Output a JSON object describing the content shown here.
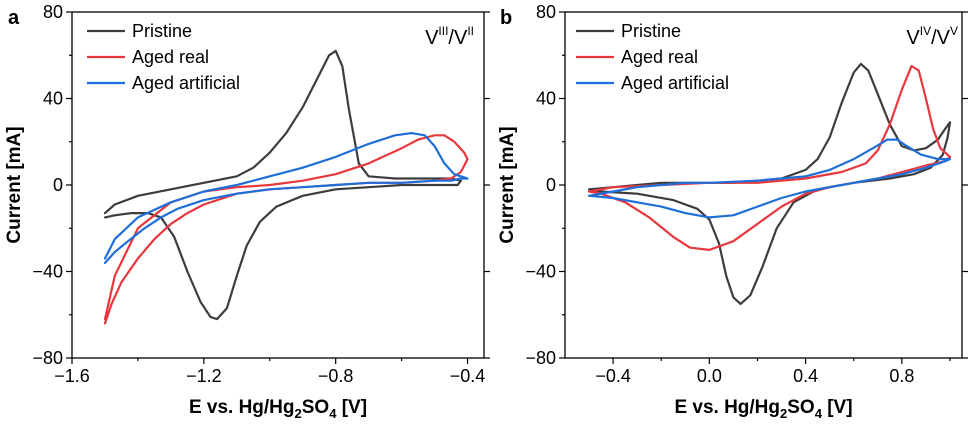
{
  "chart_data": [
    {
      "panel_label": "a",
      "type": "line",
      "xlabel_main": "E vs. Hg/Hg",
      "xlabel_sub1": "2",
      "xlabel_mid": "SO",
      "xlabel_sub2": "4",
      "xlabel_end": " [V]",
      "ylabel": "Current [mA]",
      "xlim": [
        -1.6,
        -0.35
      ],
      "ylim": [
        -80,
        80
      ],
      "xticks": [
        -1.6,
        -1.2,
        -0.8,
        -0.4
      ],
      "xtick_labels": [
        "−1.6",
        "−1.2",
        "−0.8",
        "−0.4"
      ],
      "yticks": [
        -80,
        -40,
        0,
        40,
        80
      ],
      "ytick_labels": [
        "−80",
        "−40",
        "0",
        "40",
        "80"
      ],
      "annotation": {
        "base1": "V",
        "sup1": "III",
        "mid": "/V",
        "sup2": "II"
      },
      "legend": {
        "position": "top-left",
        "entries": [
          "Pristine",
          "Aged real",
          "Aged artificial"
        ]
      },
      "series": [
        {
          "name": "Pristine",
          "color": "#3d3d3d",
          "points": [
            [
              -1.5,
              -15
            ],
            [
              -1.47,
              -14
            ],
            [
              -1.42,
              -13
            ],
            [
              -1.37,
              -13
            ],
            [
              -1.33,
              -15
            ],
            [
              -1.29,
              -24
            ],
            [
              -1.25,
              -40
            ],
            [
              -1.21,
              -54
            ],
            [
              -1.18,
              -61
            ],
            [
              -1.16,
              -62
            ],
            [
              -1.13,
              -57
            ],
            [
              -1.1,
              -42
            ],
            [
              -1.07,
              -28
            ],
            [
              -1.03,
              -17
            ],
            [
              -0.98,
              -10
            ],
            [
              -0.9,
              -5
            ],
            [
              -0.8,
              -2
            ],
            [
              -0.7,
              -1
            ],
            [
              -0.6,
              0
            ],
            [
              -0.5,
              0
            ],
            [
              -0.43,
              0
            ],
            [
              -0.42,
              2
            ],
            [
              -0.45,
              3
            ],
            [
              -0.55,
              3
            ],
            [
              -0.62,
              3
            ],
            [
              -0.7,
              4
            ],
            [
              -0.73,
              10
            ],
            [
              -0.76,
              35
            ],
            [
              -0.78,
              55
            ],
            [
              -0.8,
              62
            ],
            [
              -0.82,
              60
            ],
            [
              -0.86,
              48
            ],
            [
              -0.9,
              36
            ],
            [
              -0.95,
              24
            ],
            [
              -1.0,
              15
            ],
            [
              -1.05,
              8
            ],
            [
              -1.1,
              4
            ],
            [
              -1.2,
              1
            ],
            [
              -1.3,
              -2
            ],
            [
              -1.4,
              -5
            ],
            [
              -1.47,
              -9
            ],
            [
              -1.5,
              -13
            ]
          ]
        },
        {
          "name": "Aged real",
          "color": "#e8383d",
          "points": [
            [
              -1.5,
              -64
            ],
            [
              -1.48,
              -55
            ],
            [
              -1.45,
              -45
            ],
            [
              -1.4,
              -34
            ],
            [
              -1.35,
              -25
            ],
            [
              -1.3,
              -18
            ],
            [
              -1.25,
              -13
            ],
            [
              -1.2,
              -9
            ],
            [
              -1.1,
              -4
            ],
            [
              -1.0,
              -2
            ],
            [
              -0.9,
              -1
            ],
            [
              -0.8,
              0
            ],
            [
              -0.7,
              1
            ],
            [
              -0.6,
              1
            ],
            [
              -0.5,
              2
            ],
            [
              -0.45,
              3
            ],
            [
              -0.42,
              6
            ],
            [
              -0.4,
              12
            ],
            [
              -0.41,
              15
            ],
            [
              -0.44,
              20
            ],
            [
              -0.47,
              23
            ],
            [
              -0.5,
              23
            ],
            [
              -0.55,
              21
            ],
            [
              -0.6,
              17
            ],
            [
              -0.7,
              10
            ],
            [
              -0.8,
              5
            ],
            [
              -0.9,
              2
            ],
            [
              -1.0,
              0
            ],
            [
              -1.1,
              -1
            ],
            [
              -1.2,
              -3
            ],
            [
              -1.3,
              -8
            ],
            [
              -1.4,
              -20
            ],
            [
              -1.47,
              -42
            ],
            [
              -1.5,
              -62
            ]
          ]
        },
        {
          "name": "Aged artificial",
          "color": "#1e6fd9",
          "points": [
            [
              -1.5,
              -36
            ],
            [
              -1.47,
              -31
            ],
            [
              -1.43,
              -26
            ],
            [
              -1.38,
              -20
            ],
            [
              -1.33,
              -15
            ],
            [
              -1.28,
              -11
            ],
            [
              -1.2,
              -7
            ],
            [
              -1.1,
              -4
            ],
            [
              -1.0,
              -2
            ],
            [
              -0.9,
              -1
            ],
            [
              -0.8,
              0
            ],
            [
              -0.7,
              1
            ],
            [
              -0.6,
              1
            ],
            [
              -0.5,
              2
            ],
            [
              -0.45,
              2
            ],
            [
              -0.42,
              3
            ],
            [
              -0.4,
              3
            ],
            [
              -0.42,
              4
            ],
            [
              -0.44,
              5
            ],
            [
              -0.47,
              10
            ],
            [
              -0.5,
              18
            ],
            [
              -0.53,
              23
            ],
            [
              -0.57,
              24
            ],
            [
              -0.62,
              23
            ],
            [
              -0.7,
              19
            ],
            [
              -0.8,
              13
            ],
            [
              -0.9,
              8
            ],
            [
              -1.0,
              4
            ],
            [
              -1.1,
              0
            ],
            [
              -1.2,
              -3
            ],
            [
              -1.3,
              -8
            ],
            [
              -1.4,
              -15
            ],
            [
              -1.47,
              -25
            ],
            [
              -1.5,
              -34
            ]
          ]
        }
      ]
    },
    {
      "panel_label": "b",
      "type": "line",
      "xlabel_main": "E vs. Hg/Hg",
      "xlabel_sub1": "2",
      "xlabel_mid": "SO",
      "xlabel_sub2": "4",
      "xlabel_end": " [V]",
      "ylabel": "Current [mA]",
      "xlim": [
        -0.6,
        1.05
      ],
      "ylim": [
        -80,
        80
      ],
      "xticks": [
        -0.4,
        0.0,
        0.4,
        0.8
      ],
      "xtick_labels": [
        "−0.4",
        "0.0",
        "0.4",
        "0.8"
      ],
      "yticks": [
        -80,
        -40,
        0,
        40,
        80
      ],
      "ytick_labels": [
        "−80",
        "−40",
        "0",
        "40",
        "80"
      ],
      "annotation": {
        "base1": "V",
        "sup1": "IV",
        "mid": "/V",
        "sup2": "V"
      },
      "legend": {
        "position": "top-left",
        "entries": [
          "Pristine",
          "Aged real",
          "Aged artificial"
        ]
      },
      "series": [
        {
          "name": "Pristine",
          "color": "#3d3d3d",
          "points": [
            [
              -0.5,
              -2
            ],
            [
              -0.4,
              -1
            ],
            [
              -0.3,
              0
            ],
            [
              -0.2,
              1
            ],
            [
              -0.1,
              1
            ],
            [
              0.0,
              1
            ],
            [
              0.1,
              1
            ],
            [
              0.2,
              2
            ],
            [
              0.3,
              3
            ],
            [
              0.4,
              7
            ],
            [
              0.45,
              12
            ],
            [
              0.5,
              22
            ],
            [
              0.55,
              38
            ],
            [
              0.6,
              52
            ],
            [
              0.63,
              56
            ],
            [
              0.66,
              53
            ],
            [
              0.7,
              42
            ],
            [
              0.75,
              28
            ],
            [
              0.8,
              18
            ],
            [
              0.85,
              16
            ],
            [
              0.9,
              17
            ],
            [
              0.95,
              21
            ],
            [
              0.98,
              26
            ],
            [
              1.0,
              29
            ],
            [
              0.99,
              22
            ],
            [
              0.97,
              14
            ],
            [
              0.92,
              8
            ],
            [
              0.85,
              5
            ],
            [
              0.75,
              3
            ],
            [
              0.6,
              1
            ],
            [
              0.45,
              -2
            ],
            [
              0.35,
              -8
            ],
            [
              0.28,
              -20
            ],
            [
              0.22,
              -38
            ],
            [
              0.17,
              -51
            ],
            [
              0.13,
              -55
            ],
            [
              0.1,
              -52
            ],
            [
              0.07,
              -42
            ],
            [
              0.04,
              -27
            ],
            [
              0.0,
              -16
            ],
            [
              -0.05,
              -11
            ],
            [
              -0.15,
              -7
            ],
            [
              -0.3,
              -4
            ],
            [
              -0.45,
              -3
            ],
            [
              -0.5,
              -2
            ]
          ]
        },
        {
          "name": "Aged real",
          "color": "#e8383d",
          "points": [
            [
              -0.5,
              -3
            ],
            [
              -0.4,
              -1
            ],
            [
              -0.2,
              0
            ],
            [
              0.0,
              1
            ],
            [
              0.2,
              1
            ],
            [
              0.4,
              3
            ],
            [
              0.55,
              6
            ],
            [
              0.65,
              10
            ],
            [
              0.7,
              16
            ],
            [
              0.75,
              28
            ],
            [
              0.8,
              44
            ],
            [
              0.84,
              55
            ],
            [
              0.87,
              53
            ],
            [
              0.9,
              40
            ],
            [
              0.93,
              26
            ],
            [
              0.96,
              17
            ],
            [
              1.0,
              13
            ],
            [
              0.98,
              11
            ],
            [
              0.9,
              9
            ],
            [
              0.8,
              6
            ],
            [
              0.7,
              3
            ],
            [
              0.6,
              1
            ],
            [
              0.5,
              -1
            ],
            [
              0.4,
              -4
            ],
            [
              0.3,
              -10
            ],
            [
              0.2,
              -18
            ],
            [
              0.1,
              -26
            ],
            [
              0.0,
              -30
            ],
            [
              -0.08,
              -29
            ],
            [
              -0.15,
              -24
            ],
            [
              -0.25,
              -15
            ],
            [
              -0.35,
              -8
            ],
            [
              -0.45,
              -4
            ],
            [
              -0.5,
              -3
            ]
          ]
        },
        {
          "name": "Aged artificial",
          "color": "#1e6fd9",
          "points": [
            [
              -0.5,
              -5
            ],
            [
              -0.4,
              -3
            ],
            [
              -0.3,
              -1
            ],
            [
              -0.2,
              0
            ],
            [
              -0.1,
              1
            ],
            [
              0.0,
              1
            ],
            [
              0.2,
              2
            ],
            [
              0.4,
              4
            ],
            [
              0.5,
              7
            ],
            [
              0.6,
              12
            ],
            [
              0.68,
              17
            ],
            [
              0.74,
              21
            ],
            [
              0.78,
              21
            ],
            [
              0.82,
              18
            ],
            [
              0.88,
              14
            ],
            [
              0.95,
              12
            ],
            [
              1.0,
              12
            ],
            [
              0.98,
              11
            ],
            [
              0.9,
              8
            ],
            [
              0.8,
              5
            ],
            [
              0.7,
              3
            ],
            [
              0.6,
              1
            ],
            [
              0.5,
              -1
            ],
            [
              0.4,
              -3
            ],
            [
              0.3,
              -6
            ],
            [
              0.2,
              -10
            ],
            [
              0.1,
              -14
            ],
            [
              0.0,
              -15
            ],
            [
              -0.1,
              -13
            ],
            [
              -0.2,
              -10
            ],
            [
              -0.3,
              -8
            ],
            [
              -0.4,
              -6
            ],
            [
              -0.5,
              -5
            ]
          ]
        }
      ]
    }
  ]
}
